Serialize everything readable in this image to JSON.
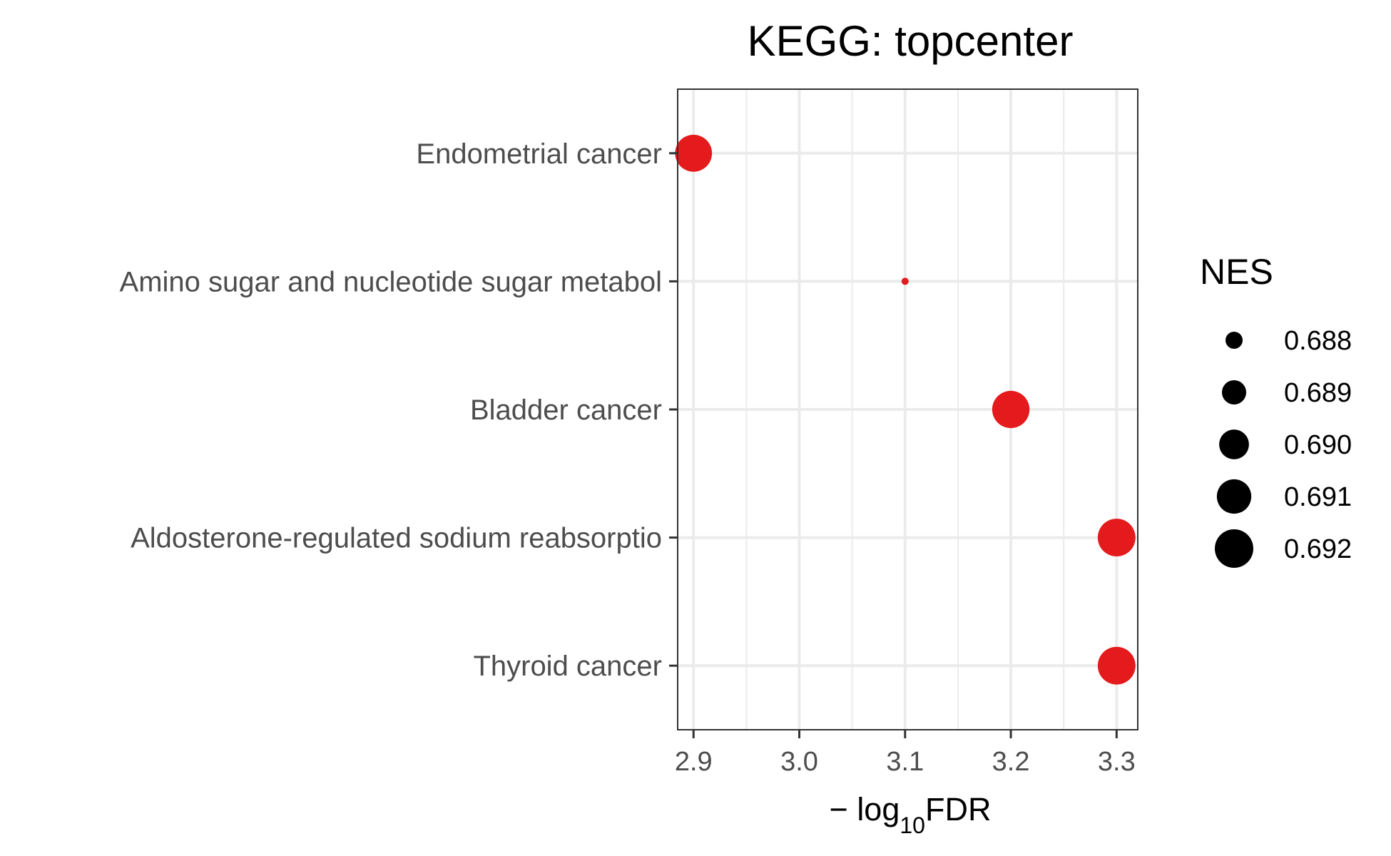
{
  "chart_data": {
    "type": "scatter",
    "title": "KEGG: topcenter",
    "xlabel": {
      "prefix": "− log",
      "subscript": "10",
      "suffix": "FDR"
    },
    "ylabel": "",
    "xlim": [
      2.885,
      3.32
    ],
    "xticks": [
      2.9,
      3.0,
      3.1,
      3.2,
      3.3
    ],
    "xtick_labels": [
      "2.9",
      "3.0",
      "3.1",
      "3.2",
      "3.3"
    ],
    "grid": true,
    "categories": [
      "Endometrial cancer",
      "Amino sugar and nucleotide sugar metabol",
      "Bladder cancer",
      "Aldosterone-regulated sodium reabsorptio",
      "Thyroid cancer"
    ],
    "points": [
      {
        "category": "Endometrial cancer",
        "x": 2.9,
        "nes": 0.6916
      },
      {
        "category": "Amino sugar and nucleotide sugar metabol",
        "x": 3.1,
        "nes": 0.6876
      },
      {
        "category": "Bladder cancer",
        "x": 3.2,
        "nes": 0.6917
      },
      {
        "category": "Aldosterone-regulated sodium reabsorptio",
        "x": 3.3,
        "nes": 0.6918
      },
      {
        "category": "Thyroid cancer",
        "x": 3.3,
        "nes": 0.6918
      }
    ],
    "point_color": "#e41a1c",
    "size_legend": {
      "title": "NES",
      "position": "right",
      "values": [
        0.688,
        0.689,
        0.69,
        0.691,
        0.692
      ],
      "labels": [
        "0.688",
        "0.689",
        "0.690",
        "0.691",
        "0.692"
      ]
    }
  }
}
